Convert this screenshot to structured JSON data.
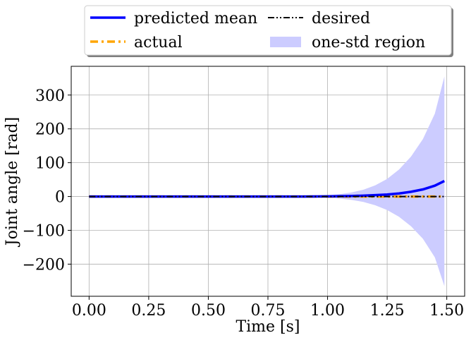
{
  "chart_data": {
    "type": "line",
    "title": "",
    "xlabel": "Time [s]",
    "ylabel": "Joint angle [rad]",
    "xlim": [
      -0.075,
      1.575
    ],
    "ylim": [
      -295,
      385
    ],
    "grid": true,
    "xticks": [
      0.0,
      0.25,
      0.5,
      0.75,
      1.0,
      1.25,
      1.5
    ],
    "xtick_labels": [
      "0.00",
      "0.25",
      "0.50",
      "0.75",
      "1.00",
      "1.25",
      "1.50"
    ],
    "yticks": [
      -200,
      -100,
      0,
      100,
      200,
      300
    ],
    "ytick_labels": [
      "−200",
      "−100",
      "0",
      "100",
      "200",
      "300"
    ],
    "legend": {
      "placement": "top-center",
      "columns": 2,
      "entries": [
        {
          "label": "predicted mean",
          "color": "#0000ff",
          "style": "solid"
        },
        {
          "label": "desired",
          "color": "#000000",
          "style": "dashdotdot"
        },
        {
          "label": "actual",
          "color": "#ffa500",
          "style": "dashdot"
        },
        {
          "label": "one-std region",
          "color": "#ccccff",
          "style": "fill"
        }
      ]
    },
    "x": [
      0.0,
      0.1,
      0.2,
      0.3,
      0.4,
      0.5,
      0.6,
      0.7,
      0.8,
      0.9,
      1.0,
      1.05,
      1.1,
      1.15,
      1.2,
      1.25,
      1.3,
      1.35,
      1.4,
      1.45,
      1.49
    ],
    "series": [
      {
        "name": "predicted mean",
        "color": "#0000ff",
        "values": [
          0,
          0,
          0,
          0,
          0,
          0,
          0,
          0,
          0,
          0,
          0.5,
          1,
          1.5,
          2.5,
          4,
          6,
          9,
          14,
          21,
          32,
          46
        ]
      },
      {
        "name": "actual",
        "color": "#ffa500",
        "values": [
          0,
          0,
          0,
          0,
          0,
          0,
          0,
          0,
          0,
          0,
          0,
          0,
          0,
          0,
          0,
          0,
          0,
          0,
          0,
          0,
          0
        ]
      },
      {
        "name": "desired",
        "color": "#000000",
        "values": [
          0,
          0,
          0,
          0,
          0,
          0,
          0,
          0,
          0,
          0,
          0,
          0,
          0,
          0,
          0,
          0,
          0,
          0,
          0,
          0,
          0
        ]
      },
      {
        "name": "one-std region",
        "color": "#ccccff",
        "upper": [
          0,
          0,
          0,
          0,
          0,
          0,
          0,
          0,
          0.5,
          1.5,
          4,
          7,
          12,
          20,
          33,
          52,
          80,
          118,
          170,
          245,
          355
        ],
        "lower": [
          0,
          0,
          0,
          0,
          0,
          0,
          0,
          0,
          -0.5,
          -1.5,
          -4,
          -6,
          -10,
          -16,
          -26,
          -40,
          -60,
          -88,
          -125,
          -180,
          -265
        ]
      }
    ]
  }
}
